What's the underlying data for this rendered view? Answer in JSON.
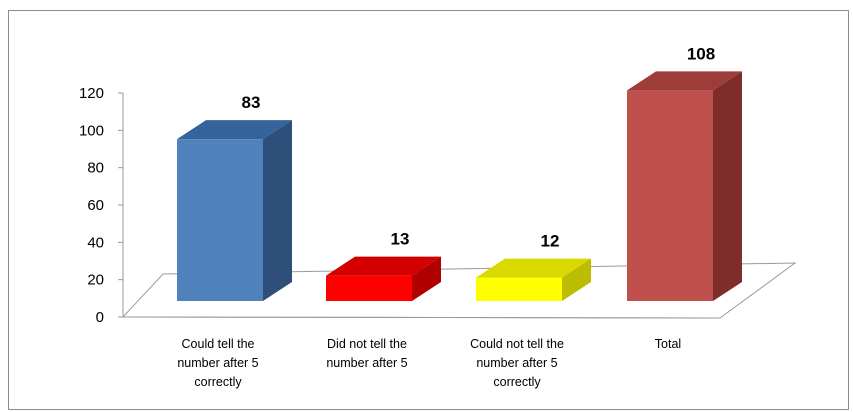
{
  "chart_data": {
    "type": "bar",
    "title": "",
    "xlabel": "",
    "ylabel": "",
    "ylim": [
      0,
      120
    ],
    "yticks": [
      0,
      20,
      40,
      60,
      80,
      100,
      120
    ],
    "grid": false,
    "categories": [
      [
        "Could tell the",
        "number after 5",
        "correctly"
      ],
      [
        "Did not tell the",
        "number after 5"
      ],
      [
        "Could not tell the",
        "number after 5",
        "correctly"
      ],
      [
        "Total"
      ]
    ],
    "values": [
      83,
      13,
      12,
      108
    ],
    "colors": [
      {
        "front": "#4f81bd",
        "top": "#35639c",
        "side": "#2e4f7a"
      },
      {
        "front": "#ff0000",
        "top": "#d40000",
        "side": "#b00000"
      },
      {
        "front": "#ffff00",
        "top": "#d9d900",
        "side": "#bcbc00"
      },
      {
        "front": "#c0504d",
        "top": "#9e3c3a",
        "side": "#7f2d2b"
      }
    ]
  }
}
